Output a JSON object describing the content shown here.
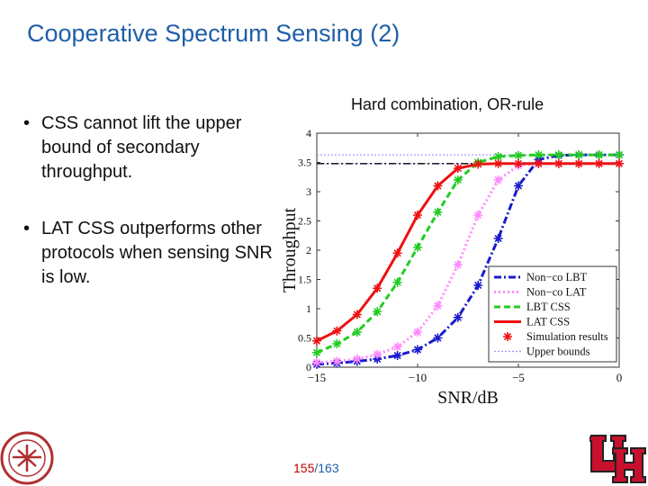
{
  "slide": {
    "title": "Cooperative Spectrum Sensing (2)",
    "bullets": [
      "CSS cannot lift the upper bound of secondary throughput.",
      "LAT CSS outperforms other protocols when sensing SNR is low."
    ],
    "bullet_symbol": "•",
    "page_current": "155",
    "page_separator": "/",
    "page_total": "163",
    "colors": {
      "title": "#1f5fa8",
      "page_current": "#c00000",
      "page_total": "#1f5fa8",
      "logo_left": "#b03030",
      "logo_right": "#c8102e"
    }
  },
  "chart_data": {
    "type": "line",
    "title": "Hard combination, OR-rule",
    "xlabel": "SNR/dB",
    "ylabel": "Throughput",
    "xlim": [
      -15,
      0
    ],
    "ylim": [
      0,
      4
    ],
    "xticks": [
      -15,
      -10,
      -5,
      0
    ],
    "xtick_labels": [
      "−15",
      "−10",
      "−5",
      "0"
    ],
    "yticks": [
      0,
      0.5,
      1,
      1.5,
      2,
      2.5,
      3,
      3.5,
      4
    ],
    "ytick_labels": [
      "0",
      "0.5",
      "1",
      "1.5",
      "2",
      "2.5",
      "3",
      "3.5",
      "4"
    ],
    "grid": false,
    "legend_position": "bottom-right",
    "x": [
      -15,
      -14,
      -13,
      -12,
      -11,
      -10,
      -9,
      -8,
      -7,
      -6,
      -5,
      -4,
      -3,
      -2,
      -1,
      0
    ],
    "series": [
      {
        "name": "Non−co LBT",
        "color": "#1a1acc",
        "dash": "dashdot",
        "values": [
          0.05,
          0.07,
          0.1,
          0.14,
          0.2,
          0.3,
          0.5,
          0.85,
          1.4,
          2.2,
          3.1,
          3.55,
          3.62,
          3.63,
          3.63,
          3.63
        ]
      },
      {
        "name": "Non−co LAT",
        "color": "#ff88ff",
        "dash": "dotted",
        "values": [
          0.08,
          0.1,
          0.14,
          0.22,
          0.35,
          0.6,
          1.05,
          1.75,
          2.6,
          3.2,
          3.45,
          3.48,
          3.48,
          3.48,
          3.48,
          3.48
        ]
      },
      {
        "name": "LBT CSS",
        "color": "#22cc22",
        "dash": "dashed",
        "values": [
          0.25,
          0.4,
          0.6,
          0.95,
          1.45,
          2.05,
          2.65,
          3.2,
          3.5,
          3.6,
          3.62,
          3.63,
          3.63,
          3.63,
          3.63,
          3.63
        ]
      },
      {
        "name": "LAT CSS",
        "color": "#ee1111",
        "dash": "solid",
        "values": [
          0.45,
          0.62,
          0.9,
          1.35,
          1.95,
          2.6,
          3.1,
          3.4,
          3.47,
          3.48,
          3.48,
          3.48,
          3.48,
          3.48,
          3.48,
          3.48
        ]
      }
    ],
    "simulation": {
      "name": "Simulation results",
      "symbol": "*"
    },
    "bounds": {
      "name": "Upper bounds",
      "color": "#9999ff",
      "values": [
        3.63,
        3.48
      ]
    },
    "bound_marker_series": [
      {
        "color": "#000000",
        "value": 3.48,
        "dash": "dashdot"
      }
    ],
    "legend_order": [
      "Non−co LBT",
      "Non−co LAT",
      "LBT CSS",
      "LAT CSS",
      "Simulation results",
      "Upper bounds"
    ]
  }
}
